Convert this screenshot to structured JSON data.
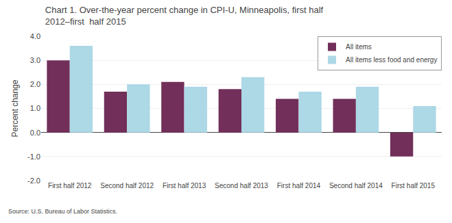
{
  "chart_data": {
    "type": "bar",
    "title": "Chart 1. Over-the-year percent change in CPI-U, Minneapolis, first half 2012–first  half 2015",
    "ylabel": "Percent change",
    "source": "Source: U.S. Bureau of Labor Statistics.",
    "categories": [
      "First half 2012",
      "Second half 2012",
      "First half 2013",
      "Second half 2013",
      "First half 2014",
      "Second half 2014",
      "First half 2015"
    ],
    "series": [
      {
        "name": "All items",
        "color": "#722F5A",
        "values": [
          3.0,
          1.7,
          2.1,
          1.8,
          1.4,
          1.4,
          -1.0
        ]
      },
      {
        "name": "All items less food and energy",
        "color": "#ADD8E6",
        "values": [
          3.6,
          2.0,
          1.9,
          2.3,
          1.7,
          1.9,
          1.1
        ]
      }
    ],
    "ylim": [
      -2.0,
      4.0
    ],
    "yticks": [
      {
        "value": -2.0,
        "label": "-2.0"
      },
      {
        "value": -1.0,
        "label": "-1.0"
      },
      {
        "value": 0.0,
        "label": "0.0"
      },
      {
        "value": 1.0,
        "label": "1.0"
      },
      {
        "value": 2.0,
        "label": "2.0"
      },
      {
        "value": 3.0,
        "label": "3.0"
      },
      {
        "value": 4.0,
        "label": "4.0"
      }
    ],
    "grid": true,
    "legend": "upper right"
  }
}
